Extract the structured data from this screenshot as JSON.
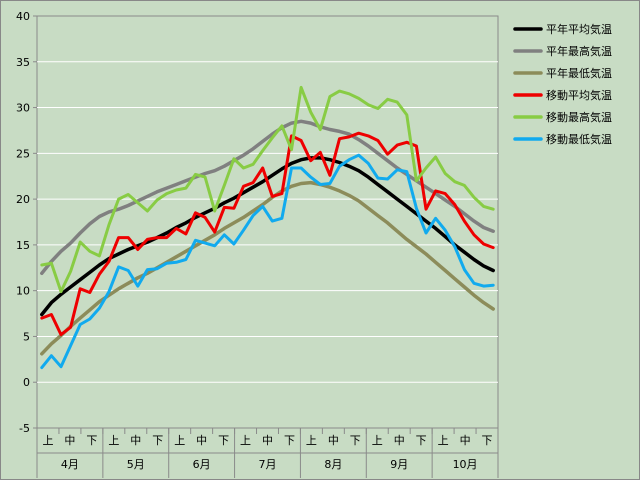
{
  "chart_data": {
    "type": "line",
    "title": "",
    "xlabel": "",
    "ylabel": "",
    "ylim": [
      -5,
      40
    ],
    "y_ticks": [
      "-5",
      "0",
      "5",
      "10",
      "15",
      "20",
      "25",
      "30",
      "35",
      "40"
    ],
    "sub_categories": [
      "上",
      "中",
      "下"
    ],
    "months": [
      "4月",
      "5月",
      "6月",
      "7月",
      "8月",
      "9月",
      "10月"
    ],
    "grid": true,
    "legend_position": "right",
    "series": [
      {
        "name": "平年平均気温",
        "color": "#000000",
        "values": [
          7.4,
          8.7,
          9.6,
          10.4,
          11.2,
          12.0,
          12.8,
          13.5,
          14.0,
          14.5,
          14.9,
          15.3,
          15.8,
          16.3,
          16.9,
          17.4,
          18.0,
          18.5,
          19.0,
          19.6,
          20.1,
          20.7,
          21.3,
          21.9,
          22.6,
          23.3,
          23.9,
          24.3,
          24.5,
          24.5,
          24.3,
          24.0,
          23.6,
          23.1,
          22.4,
          21.6,
          20.8,
          20.0,
          19.2,
          18.4,
          17.6,
          16.8,
          15.9,
          15.0,
          14.2,
          13.4,
          12.7,
          12.2
        ]
      },
      {
        "name": "平年最高気温",
        "color": "#808080",
        "values": [
          11.9,
          13.2,
          14.3,
          15.2,
          16.3,
          17.3,
          18.1,
          18.6,
          18.9,
          19.3,
          19.8,
          20.3,
          20.8,
          21.2,
          21.6,
          22.0,
          22.4,
          22.8,
          23.1,
          23.6,
          24.2,
          24.8,
          25.5,
          26.3,
          27.1,
          27.8,
          28.3,
          28.5,
          28.3,
          27.9,
          27.6,
          27.4,
          27.1,
          26.5,
          25.8,
          25.0,
          24.2,
          23.4,
          22.7,
          22.0,
          21.3,
          20.6,
          19.9,
          19.2,
          18.4,
          17.6,
          16.9,
          16.5
        ]
      },
      {
        "name": "平年最低気温",
        "color": "#8c8c5a",
        "values": [
          3.1,
          4.2,
          5.1,
          6.1,
          7.0,
          7.9,
          8.8,
          9.5,
          10.2,
          10.8,
          11.4,
          11.9,
          12.5,
          13.1,
          13.7,
          14.3,
          14.9,
          15.5,
          16.1,
          16.8,
          17.4,
          18.0,
          18.7,
          19.4,
          20.2,
          20.9,
          21.4,
          21.7,
          21.8,
          21.6,
          21.3,
          20.9,
          20.4,
          19.8,
          19.0,
          18.2,
          17.4,
          16.5,
          15.6,
          14.8,
          14.0,
          13.1,
          12.2,
          11.3,
          10.4,
          9.5,
          8.7,
          8.0
        ]
      },
      {
        "name": "移動平均気温",
        "color": "#ee0000",
        "values": [
          7.0,
          7.4,
          5.2,
          6.0,
          10.2,
          9.8,
          11.8,
          13.2,
          15.8,
          15.8,
          14.5,
          15.6,
          15.8,
          15.8,
          16.8,
          16.2,
          18.5,
          18.0,
          16.4,
          19.1,
          19.0,
          21.4,
          21.8,
          23.4,
          20.3,
          20.6,
          26.9,
          26.4,
          24.2,
          25.1,
          22.6,
          26.6,
          26.8,
          27.2,
          26.9,
          26.4,
          24.9,
          25.9,
          26.2,
          25.8,
          18.9,
          20.9,
          20.6,
          19.4,
          17.6,
          16.1,
          15.1,
          14.7
        ]
      },
      {
        "name": "移動最高気温",
        "color": "#88cc44",
        "values": [
          12.8,
          13.0,
          9.9,
          12.1,
          15.3,
          14.3,
          13.8,
          17.2,
          20.0,
          20.5,
          19.6,
          18.7,
          19.9,
          20.6,
          21.0,
          21.2,
          22.7,
          22.4,
          18.7,
          21.5,
          24.4,
          23.4,
          23.8,
          25.3,
          26.7,
          28.0,
          25.4,
          32.2,
          29.5,
          27.6,
          31.2,
          31.8,
          31.5,
          31.0,
          30.3,
          29.9,
          30.9,
          30.6,
          29.2,
          22.0,
          23.4,
          24.6,
          22.8,
          21.9,
          21.5,
          20.2,
          19.2,
          18.9
        ]
      },
      {
        "name": "移動最低気温",
        "color": "#11aaee",
        "values": [
          1.6,
          2.9,
          1.7,
          4.0,
          6.3,
          6.9,
          8.1,
          9.9,
          12.6,
          12.2,
          10.5,
          12.3,
          12.4,
          13.0,
          13.1,
          13.4,
          15.5,
          15.2,
          14.9,
          16.1,
          15.1,
          16.6,
          18.2,
          19.2,
          17.6,
          17.9,
          23.4,
          23.4,
          22.4,
          21.6,
          21.7,
          23.6,
          24.3,
          24.8,
          23.9,
          22.3,
          22.2,
          23.2,
          23.0,
          19.0,
          16.3,
          17.9,
          16.6,
          14.8,
          12.3,
          10.8,
          10.5,
          10.6
        ]
      }
    ]
  }
}
